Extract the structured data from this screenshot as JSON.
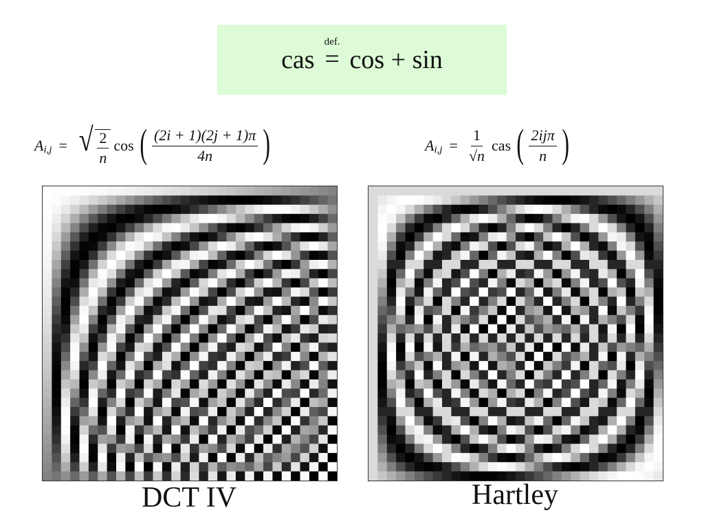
{
  "definition": {
    "lhs": "cas",
    "over_eq": "def.",
    "eq": "=",
    "rhs": "cos + sin"
  },
  "left_formula": {
    "lhs": "A",
    "sub": "i,j",
    "eq": "=",
    "sqrt_num": "2",
    "sqrt_den": "n",
    "fn": "cos",
    "num": "(2i + 1)(2j + 1)π",
    "den": "4n"
  },
  "right_formula": {
    "lhs": "A",
    "sub": "i,j",
    "eq": "=",
    "coef_num": "1",
    "coef_den": "√n",
    "fn": "cas",
    "num": "2ijπ",
    "den": "n"
  },
  "matrices": {
    "left": {
      "kind": "dct4",
      "n": 32
    },
    "right": {
      "kind": "hartley",
      "n": 32
    }
  },
  "captions": {
    "left": "DCT IV",
    "right": "Hartley"
  }
}
